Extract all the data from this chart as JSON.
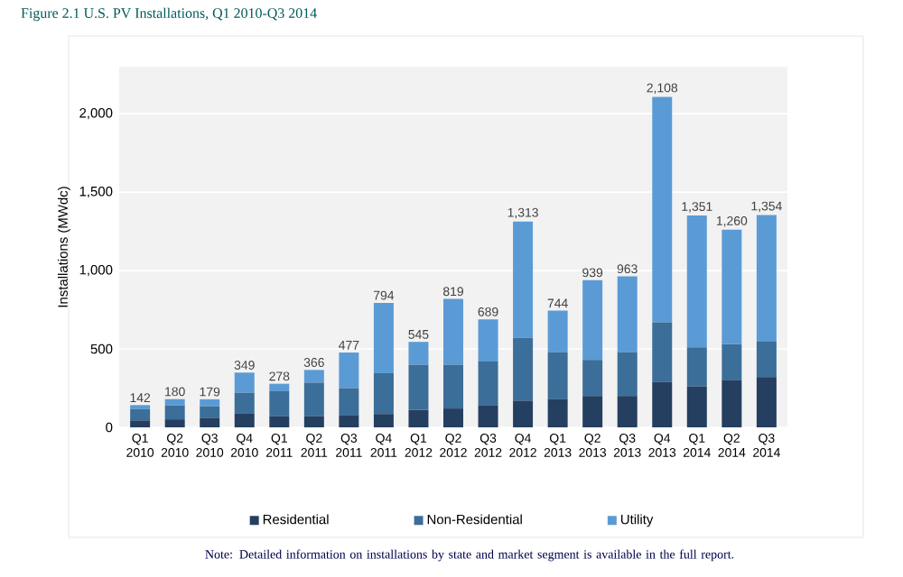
{
  "chart_data": {
    "type": "bar",
    "stacked": true,
    "title": "Figure 2.1  U.S. PV Installations, Q1 2010-Q3 2014",
    "ylabel": "Installations (MWdc)",
    "categories": [
      "Q1 2010",
      "Q2 2010",
      "Q3 2010",
      "Q4 2010",
      "Q1 2011",
      "Q2 2011",
      "Q3 2011",
      "Q4 2011",
      "Q1 2012",
      "Q2 2012",
      "Q3 2012",
      "Q4 2012",
      "Q1 2013",
      "Q2 2013",
      "Q3 2013",
      "Q4 2013",
      "Q1 2014",
      "Q2 2014",
      "Q3 2014"
    ],
    "series": [
      {
        "name": "Residential",
        "color": "#243f60",
        "values": [
          44,
          51,
          61,
          90,
          70,
          70,
          75,
          85,
          110,
          120,
          140,
          170,
          180,
          200,
          200,
          290,
          260,
          300,
          320
        ]
      },
      {
        "name": "Non-Residential",
        "color": "#3b6e99",
        "values": [
          72,
          89,
          73,
          131,
          160,
          215,
          175,
          260,
          290,
          280,
          280,
          400,
          300,
          230,
          280,
          380,
          250,
          230,
          230
        ]
      },
      {
        "name": "Utility",
        "color": "#5b9bd5",
        "values": [
          26,
          40,
          45,
          128,
          48,
          81,
          227,
          449,
          145,
          419,
          269,
          743,
          264,
          509,
          483,
          1438,
          841,
          730,
          804
        ]
      }
    ],
    "totals": [
      "142",
      "180",
      "179",
      "349",
      "278",
      "366",
      "477",
      "794",
      "545",
      "819",
      "689",
      "1,313",
      "744",
      "939",
      "963",
      "2,108",
      "1,351",
      "1,260",
      "1,354"
    ],
    "ylim": [
      0,
      2300
    ],
    "yticks": [
      0,
      500,
      {
        "value": 1000,
        "label": "1,000"
      },
      {
        "value": 1500,
        "label": "1,500"
      },
      {
        "value": 2000,
        "label": "2,000"
      }
    ],
    "grid": "y",
    "legend": "bottom",
    "annotations": [
      "Note: Detailed information on installations by state and market segment is available in the full report."
    ]
  }
}
